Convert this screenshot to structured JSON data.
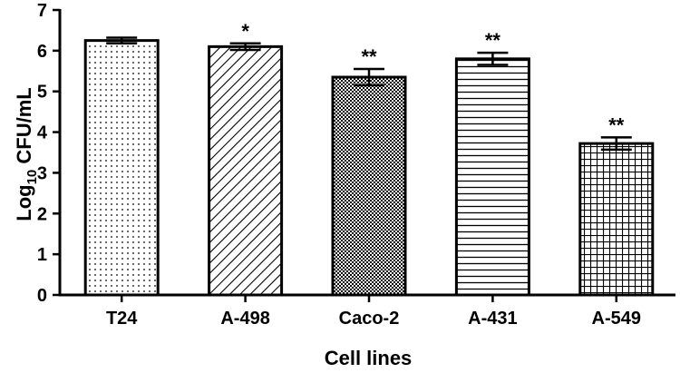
{
  "chart_data": {
    "type": "bar",
    "categories": [
      "T24",
      "A-498",
      "Caco-2",
      "A-431",
      "A-549"
    ],
    "values": [
      6.25,
      6.1,
      5.35,
      5.8,
      3.72
    ],
    "errors": [
      0.07,
      0.08,
      0.2,
      0.15,
      0.15
    ],
    "significance": [
      "",
      "*",
      "**",
      "**",
      "**"
    ],
    "patterns": [
      "dots",
      "diagonal",
      "checker",
      "horizontal",
      "grid"
    ],
    "xlabel": "Cell lines",
    "ylabel_main": "Log",
    "ylabel_sub": "10",
    "ylabel_rest": " CFU/mL",
    "ylim": [
      0,
      7
    ],
    "yticks": [
      "0",
      "1",
      "2",
      "3",
      "4",
      "5",
      "6",
      "7"
    ],
    "grid": false,
    "colors": {
      "bar_fill": "#ffffff",
      "stroke": "#000000"
    }
  }
}
